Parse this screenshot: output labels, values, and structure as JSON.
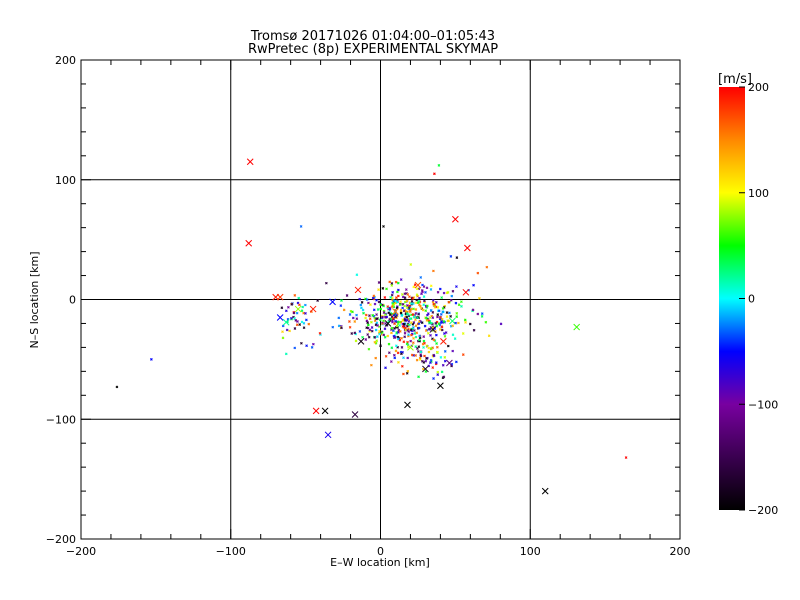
{
  "chart_data": {
    "type": "scatter",
    "title": "Tromsø 20171026 01:04:00–01:05:43",
    "subtitle": "RwPretec (8p) EXPERIMENTAL SKYMAP",
    "xlabel": "E–W location [km]",
    "ylabel": "N–S location [km]",
    "xlim": [
      -200,
      200
    ],
    "ylim": [
      -200,
      200
    ],
    "x_ticks": [
      -200,
      -100,
      0,
      100,
      200
    ],
    "y_ticks": [
      -200,
      -100,
      0,
      100,
      200
    ],
    "x_tick_labels": [
      "−200",
      "−100",
      "0",
      "100",
      "200"
    ],
    "y_tick_labels": [
      "−200",
      "−100",
      "0",
      "100",
      "200"
    ],
    "grid": true,
    "colorbar": {
      "label": "[m/s]",
      "range": [
        -200,
        200
      ],
      "ticks": [
        200,
        100,
        0,
        -100,
        -200
      ],
      "tick_labels": [
        "200",
        "100",
        "0",
        "−100",
        "−200"
      ],
      "colormap": [
        "#000000",
        "#3a0050",
        "#7800a0",
        "#0000ff",
        "#00ffff",
        "#00ff00",
        "#ffff00",
        "#ff8800",
        "#ff0000"
      ]
    },
    "big_markers": [
      {
        "x": -87,
        "y": 115,
        "v": 200
      },
      {
        "x": -88,
        "y": 47,
        "v": 200
      },
      {
        "x": -70,
        "y": 2,
        "v": 190
      },
      {
        "x": -67,
        "y": 2,
        "v": 180
      },
      {
        "x": -67,
        "y": -15,
        "v": -50
      },
      {
        "x": -63,
        "y": -19,
        "v": 20
      },
      {
        "x": -55,
        "y": -8,
        "v": 80
      },
      {
        "x": -45,
        "y": -8,
        "v": 190
      },
      {
        "x": -43,
        "y": -93,
        "v": 200
      },
      {
        "x": -37,
        "y": -93,
        "v": -200
      },
      {
        "x": -35,
        "y": -113,
        "v": -60
      },
      {
        "x": -32,
        "y": -2,
        "v": -50
      },
      {
        "x": -17,
        "y": -96,
        "v": -160
      },
      {
        "x": -13,
        "y": -35,
        "v": -190
      },
      {
        "x": 18,
        "y": -88,
        "v": -200
      },
      {
        "x": 40,
        "y": -72,
        "v": -200
      },
      {
        "x": 50,
        "y": 67,
        "v": 200
      },
      {
        "x": 58,
        "y": 43,
        "v": 200
      },
      {
        "x": 57,
        "y": 6,
        "v": 200
      },
      {
        "x": 110,
        "y": -160,
        "v": -200
      },
      {
        "x": 131,
        "y": -23,
        "v": 60
      },
      {
        "x": 30,
        "y": -58,
        "v": -180
      },
      {
        "x": 46,
        "y": -53,
        "v": -120
      },
      {
        "x": 10,
        "y": -10,
        "v": 150
      },
      {
        "x": -15,
        "y": 8,
        "v": 190
      },
      {
        "x": 25,
        "y": 12,
        "v": 170
      },
      {
        "x": 35,
        "y": -25,
        "v": -170
      },
      {
        "x": 42,
        "y": -35,
        "v": 190
      },
      {
        "x": 5,
        "y": -20,
        "v": -200
      },
      {
        "x": 20,
        "y": -40,
        "v": 80
      },
      {
        "x": 48,
        "y": -18,
        "v": 30
      }
    ],
    "small_markers": [
      {
        "x": 39,
        "y": 112,
        "v": 40
      },
      {
        "x": 36,
        "y": 105,
        "v": 200
      },
      {
        "x": -53,
        "y": 61,
        "v": -30
      },
      {
        "x": 2,
        "y": 61,
        "v": -200
      },
      {
        "x": -153,
        "y": -50,
        "v": -50
      },
      {
        "x": -176,
        "y": -73,
        "v": -200
      },
      {
        "x": 164,
        "y": -132,
        "v": 200
      },
      {
        "x": 71,
        "y": 27,
        "v": 160
      },
      {
        "x": 47,
        "y": 36,
        "v": -40
      },
      {
        "x": 51,
        "y": 35,
        "v": -190
      },
      {
        "x": 65,
        "y": 22,
        "v": 170
      }
    ],
    "cluster": [
      {
        "cx": 15,
        "cy": -15,
        "sx": 20,
        "sy": 14,
        "n": 560
      },
      {
        "cx": -55,
        "cy": -15,
        "sx": 7,
        "sy": 9,
        "n": 45
      },
      {
        "cx": 30,
        "cy": -50,
        "sx": 10,
        "sy": 8,
        "n": 60
      }
    ]
  }
}
